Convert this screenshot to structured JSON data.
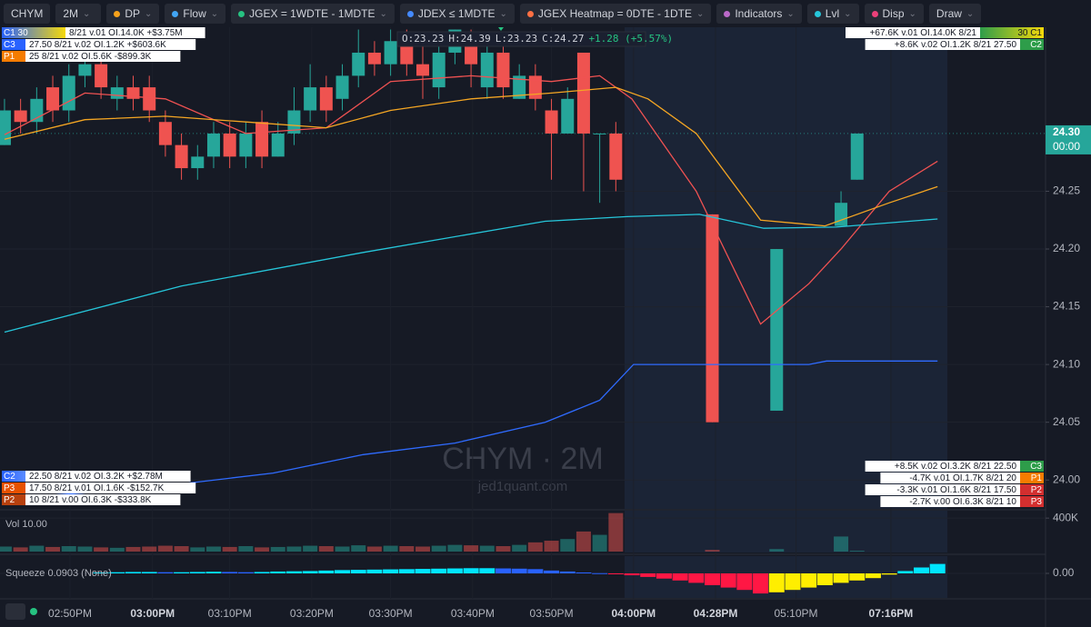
{
  "toolbar": {
    "symbol": "CHYM",
    "interval": "2M",
    "buttons": [
      {
        "label": "DP",
        "color": "#f7a21b"
      },
      {
        "label": "Flow",
        "color": "#42a5f5"
      },
      {
        "label": "JGEX = 1WDTE - 1MDTE",
        "color": "#26c281"
      },
      {
        "label": "JDEX ≤ 1MDTE",
        "color": "#448aff"
      },
      {
        "label": "JGEX Heatmap = 0DTE - 1DTE",
        "color": "#ff7043"
      },
      {
        "label": "Indicators",
        "color": "#ba68c8"
      },
      {
        "label": "Lvl",
        "color": "#26c6da"
      },
      {
        "label": "Disp",
        "color": "#ec407a"
      },
      {
        "label": "Draw",
        "color": null
      }
    ]
  },
  "ohlc_readout": [
    "O:23.23",
    "H:24.39",
    "L:23.23",
    "C:24.27",
    "+1.28 (+5.57%)"
  ],
  "left_levels": [
    {
      "tag": "C1 30",
      "text": "8/21 v.01 OI.14.0K +$3.75M",
      "color": "#2962ff",
      "color2": "#f5d90a"
    },
    {
      "tag": "C3",
      "text": "27.50 8/21 v.02 OI.1.2K +$603.6K",
      "color": "#2962ff",
      "color2": null
    },
    {
      "tag": "P1",
      "text": "25 8/21 v.02 OI.5.6K -$899.3K",
      "color": "#f57c00",
      "color2": null
    }
  ],
  "left_levels_bottom": [
    {
      "tag": "C2",
      "text": "22.50 8/21 v.02 OI.3.2K +$2.78M",
      "color": "#2962ff",
      "color2": "#5b8cff"
    },
    {
      "tag": "P3",
      "text": "17.50 8/21 v.01 OI.1.6K -$152.7K",
      "color": "#e65100",
      "color2": null
    },
    {
      "tag": "P2",
      "text": "10 8/21 v.00 OI.6.3K -$333.8K",
      "color": "#b7410e",
      "color2": null
    }
  ],
  "right_levels": [
    {
      "tag": "30 C1",
      "text": "+67.6K v.01 OI.14.0K 8/21",
      "color": "#2e9d4a",
      "color2": "#f5d90a"
    },
    {
      "tag": "C2",
      "text": "+8.6K v.02 OI.1.2K 8/21 27.50",
      "color": "#2e9d4a",
      "color2": null
    }
  ],
  "right_levels_bottom": [
    {
      "tag": "C3",
      "text": "+8.5K v.02 OI.3.2K 8/21 22.50",
      "color": "#2e9d4a",
      "color2": null
    },
    {
      "tag": "P1",
      "text": "-4.7K v.01 OI.1.7K 8/21 20",
      "color": "#f57c00",
      "color2": null
    },
    {
      "tag": "P2",
      "text": "-3.3K v.01 OI.1.6K 8/21 17.50",
      "color": "#d32f2f",
      "color2": null
    },
    {
      "tag": "P3",
      "text": "-2.7K v.00 OI.6.3K 8/21 10",
      "color": "#d32f2f",
      "color2": null
    }
  ],
  "watermark": {
    "symbol": "CHYM · 2M",
    "site": "jed1quant.com"
  },
  "chart_data": [
    {
      "type": "candlestick",
      "up_color": "#26a69a",
      "down_color": "#ef5350",
      "x": [
        0,
        1,
        2,
        3,
        4,
        5,
        6,
        7,
        8,
        9,
        10,
        11,
        12,
        13,
        14,
        15,
        16,
        17,
        18,
        19,
        20,
        21,
        22,
        23,
        24,
        25,
        26,
        27,
        28,
        29,
        30,
        31,
        32,
        33,
        34,
        35,
        36,
        37,
        38,
        44,
        48,
        52,
        53
      ],
      "open": [
        24.29,
        24.32,
        24.31,
        24.34,
        24.32,
        24.35,
        24.36,
        24.33,
        24.34,
        24.34,
        24.31,
        24.29,
        24.27,
        24.28,
        24.3,
        24.28,
        24.31,
        24.28,
        24.3,
        24.32,
        24.34,
        24.33,
        24.35,
        24.37,
        24.36,
        24.38,
        24.36,
        24.34,
        24.37,
        24.38,
        24.34,
        24.37,
        24.33,
        24.35,
        24.32,
        24.3,
        24.37,
        24.3,
        24.3,
        24.23,
        24.06,
        24.22,
        24.26
      ],
      "high": [
        24.33,
        24.33,
        24.34,
        24.35,
        24.36,
        24.37,
        24.37,
        24.35,
        24.35,
        24.35,
        24.32,
        24.3,
        24.29,
        24.31,
        24.31,
        24.31,
        24.32,
        24.31,
        24.34,
        24.36,
        24.35,
        24.36,
        24.39,
        24.38,
        24.39,
        24.39,
        24.38,
        24.38,
        24.39,
        24.39,
        24.38,
        24.38,
        24.36,
        24.36,
        24.33,
        24.34,
        24.37,
        24.3,
        24.31,
        24.23,
        24.2,
        24.25,
        24.3
      ],
      "low": [
        24.29,
        24.3,
        24.3,
        24.31,
        24.31,
        24.34,
        24.33,
        24.32,
        24.32,
        24.31,
        24.28,
        24.26,
        24.26,
        24.27,
        24.27,
        24.27,
        24.27,
        24.28,
        24.29,
        24.31,
        24.31,
        24.32,
        24.34,
        24.35,
        24.35,
        24.35,
        24.33,
        24.33,
        24.36,
        24.34,
        24.33,
        24.33,
        24.33,
        24.32,
        24.26,
        24.3,
        24.25,
        24.24,
        24.25,
        24.05,
        24.06,
        24.22,
        24.26
      ],
      "close": [
        24.32,
        24.31,
        24.33,
        24.32,
        24.35,
        24.36,
        24.34,
        24.34,
        24.33,
        24.32,
        24.29,
        24.27,
        24.28,
        24.3,
        24.28,
        24.3,
        24.28,
        24.3,
        24.32,
        24.34,
        24.32,
        24.35,
        24.37,
        24.36,
        24.38,
        24.36,
        24.35,
        24.37,
        24.39,
        24.36,
        24.37,
        24.34,
        24.35,
        24.33,
        24.3,
        24.33,
        24.3,
        24.3,
        24.26,
        24.05,
        24.2,
        24.24,
        24.3
      ],
      "series": [
        {
          "color": "#f05252",
          "x": [
            0,
            5,
            10,
            15,
            20,
            24,
            29,
            34,
            37,
            39,
            43,
            47,
            50,
            52,
            55,
            58
          ],
          "values": [
            24.299,
            24.335,
            24.33,
            24.3,
            24.305,
            24.345,
            24.35,
            24.345,
            24.35,
            24.33,
            24.25,
            24.135,
            24.17,
            24.2,
            24.25,
            24.276
          ]
        },
        {
          "color": "#f5a623",
          "x": [
            0,
            5,
            10,
            15,
            20,
            24,
            29,
            34,
            38,
            40,
            43,
            47,
            51,
            55,
            58
          ],
          "values": [
            24.295,
            24.312,
            24.315,
            24.31,
            24.305,
            24.32,
            24.33,
            24.335,
            24.34,
            24.33,
            24.3,
            24.225,
            24.22,
            24.24,
            24.254
          ]
        },
        {
          "color": "#26c6da",
          "x": [
            0,
            11,
            22.3,
            33.6,
            38.7,
            43.2,
            47.2,
            51.7,
            58
          ],
          "values": [
            24.128,
            24.168,
            24.197,
            24.224,
            24.228,
            24.23,
            24.218,
            24.219,
            24.226
          ]
        },
        {
          "color": "#2f6bff",
          "x": [
            0,
            8.2,
            16.7,
            22.3,
            28,
            33.6,
            37,
            39.1,
            50,
            51.1,
            58
          ],
          "values": [
            23.984,
            23.992,
            24.006,
            24.022,
            24.032,
            24.05,
            24.069,
            24.1,
            24.1,
            24.103,
            24.103
          ]
        }
      ],
      "last_price": 24.3,
      "last_price_label": "24.30",
      "countdown": "00:00",
      "xlim": [
        -0.28,
        64.6
      ],
      "ylim": [
        23.975,
        24.392
      ],
      "xticks": [
        {
          "value": 4.07,
          "label": "02:50PM"
        },
        {
          "value": 9.2,
          "label": "03:00PM"
        },
        {
          "value": 14,
          "label": "03:10PM"
        },
        {
          "value": 19.1,
          "label": "03:20PM"
        },
        {
          "value": 24,
          "label": "03:30PM"
        },
        {
          "value": 29.1,
          "label": "03:40PM"
        },
        {
          "value": 34,
          "label": "03:50PM"
        },
        {
          "value": 39.1,
          "label": "04:00PM"
        },
        {
          "value": 44.2,
          "label": "04:28PM"
        },
        {
          "value": 49.2,
          "label": "05:10PM"
        },
        {
          "value": 55.1,
          "label": "07:16PM"
        }
      ],
      "yticks": [
        {
          "value": 24.0,
          "label": "24.00"
        },
        24.05,
        {
          "value": 24.1,
          "label": "24.10"
        },
        24.15,
        {
          "value": 24.2,
          "label": "24.20"
        },
        24.25
      ]
    },
    {
      "type": "bar",
      "title": "Vol 10.00",
      "x": [
        0,
        1,
        2,
        3,
        4,
        5,
        6,
        7,
        8,
        9,
        10,
        11,
        12,
        13,
        14,
        15,
        16,
        17,
        18,
        19,
        20,
        21,
        22,
        23,
        24,
        25,
        26,
        27,
        28,
        29,
        30,
        31,
        32,
        33,
        34,
        35,
        36,
        37,
        38,
        44,
        48,
        52,
        53
      ],
      "values": [
        60000,
        50000,
        70000,
        55000,
        65000,
        60000,
        50000,
        45000,
        55000,
        60000,
        70000,
        65000,
        50000,
        60000,
        55000,
        65000,
        50000,
        55000,
        60000,
        70000,
        65000,
        60000,
        75000,
        60000,
        70000,
        65000,
        60000,
        70000,
        80000,
        75000,
        70000,
        65000,
        80000,
        110000,
        130000,
        150000,
        240000,
        200000,
        460000,
        20000,
        30000,
        180000,
        10000
      ],
      "xlim": [
        -0.28,
        64.6
      ],
      "ylim": [
        0,
        456000
      ],
      "yticks": [
        {
          "value": 400000,
          "label": "400K"
        }
      ]
    },
    {
      "type": "squeeze",
      "title": "Squeeze 0.0903 (None)",
      "colors": {
        "up_rising": "#00e5ff",
        "up_falling": "#2962ff",
        "down_falling": "#ff1744",
        "down_rising": "#ffee00"
      },
      "x": [
        6,
        7,
        8,
        9,
        10,
        11,
        12,
        13,
        14,
        15,
        16,
        17,
        18,
        19,
        20,
        21,
        22,
        23,
        24,
        25,
        26,
        27,
        28,
        29,
        30,
        31,
        32,
        33,
        34,
        35,
        36,
        37,
        38,
        39,
        40,
        41,
        42,
        43,
        44,
        45,
        46,
        47,
        48,
        49,
        50,
        51,
        52,
        53,
        54,
        55,
        56,
        57,
        58
      ],
      "values": [
        0.004,
        0.005,
        0.006,
        0.006,
        0.005,
        0.005,
        0.006,
        0.007,
        0.006,
        0.005,
        0.006,
        0.008,
        0.009,
        0.01,
        0.012,
        0.014,
        0.015,
        0.016,
        0.017,
        0.018,
        0.019,
        0.02,
        0.021,
        0.022,
        0.022,
        0.021,
        0.02,
        0.018,
        0.012,
        0.008,
        0.004,
        0.001,
        -0.003,
        -0.008,
        -0.015,
        -0.022,
        -0.03,
        -0.04,
        -0.05,
        -0.06,
        -0.07,
        -0.085,
        -0.08,
        -0.07,
        -0.06,
        -0.05,
        -0.04,
        -0.03,
        -0.02,
        -0.005,
        0.01,
        0.025,
        0.04
      ],
      "xlim": [
        -0.28,
        64.6
      ],
      "ylim": [
        -0.1,
        0.05
      ],
      "yticks": [
        {
          "value": 0,
          "label": "0.00"
        }
      ]
    }
  ]
}
